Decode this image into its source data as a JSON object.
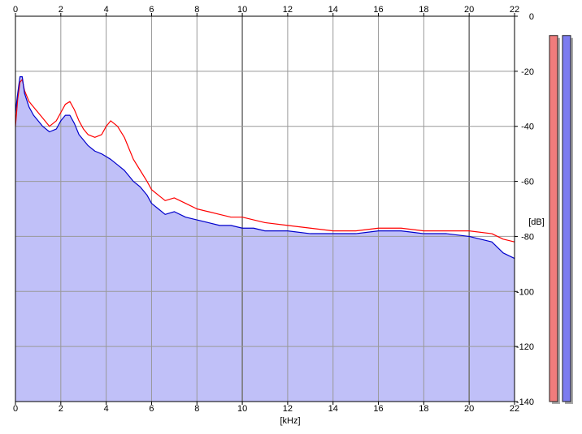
{
  "chart_data": {
    "type": "area",
    "x_unit_label": "[kHz]",
    "y_unit_label": "[dB]",
    "xlim": [
      0,
      22
    ],
    "ylim": [
      -140,
      0
    ],
    "x_ticks": [
      "0",
      "2",
      "4",
      "6",
      "8",
      "10",
      "12",
      "14",
      "16",
      "18",
      "20",
      "22"
    ],
    "y_ticks": [
      "0",
      "-20",
      "-40",
      "-60",
      "-80",
      "-100",
      "-120",
      "-140"
    ],
    "grid": true,
    "series": [
      {
        "color": "#ff0000",
        "x": [
          0,
          0.1,
          0.2,
          0.3,
          0.4,
          0.6,
          0.8,
          1.0,
          1.2,
          1.5,
          1.8,
          2.0,
          2.2,
          2.4,
          2.6,
          2.8,
          3.0,
          3.2,
          3.5,
          3.8,
          4.0,
          4.2,
          4.5,
          4.8,
          5.0,
          5.2,
          5.5,
          5.8,
          6.0,
          6.3,
          6.6,
          7.0,
          7.5,
          8.0,
          8.5,
          9.0,
          9.5,
          10.0,
          10.5,
          11.0,
          12.0,
          13.0,
          14.0,
          15.0,
          16.0,
          17.0,
          18.0,
          19.0,
          20.0,
          21.0,
          21.5,
          22.0
        ],
        "values": [
          -40,
          -30,
          -24,
          -23,
          -27,
          -31,
          -33,
          -35,
          -37,
          -40,
          -38,
          -35,
          -32,
          -31,
          -34,
          -38,
          -41,
          -43,
          -44,
          -43,
          -40,
          -38,
          -40,
          -44,
          -48,
          -52,
          -56,
          -60,
          -63,
          -65,
          -67,
          -66,
          -68,
          -70,
          -71,
          -72,
          -73,
          -73,
          -74,
          -75,
          -76,
          -77,
          -78,
          -78,
          -77,
          -77,
          -78,
          -78,
          -78,
          -79,
          -81,
          -82
        ]
      },
      {
        "color": "#0000cc",
        "x": [
          0,
          0.1,
          0.2,
          0.3,
          0.4,
          0.6,
          0.8,
          1.0,
          1.2,
          1.5,
          1.8,
          2.0,
          2.2,
          2.4,
          2.6,
          2.8,
          3.0,
          3.2,
          3.5,
          3.8,
          4.0,
          4.2,
          4.5,
          4.8,
          5.0,
          5.2,
          5.5,
          5.8,
          6.0,
          6.3,
          6.6,
          7.0,
          7.5,
          8.0,
          8.5,
          9.0,
          9.5,
          10.0,
          10.5,
          11.0,
          12.0,
          13.0,
          14.0,
          15.0,
          16.0,
          17.0,
          18.0,
          19.0,
          20.0,
          21.0,
          21.5,
          22.0
        ],
        "values": [
          -35,
          -28,
          -22,
          -22,
          -28,
          -33,
          -36,
          -38,
          -40,
          -42,
          -41,
          -38,
          -36,
          -36,
          -39,
          -43,
          -45,
          -47,
          -49,
          -50,
          -51,
          -52,
          -54,
          -56,
          -58,
          -60,
          -62,
          -65,
          -68,
          -70,
          -72,
          -71,
          -73,
          -74,
          -75,
          -76,
          -76,
          -77,
          -77,
          -78,
          -78,
          -79,
          -79,
          -79,
          -78,
          -78,
          -79,
          -79,
          -80,
          -82,
          -86,
          -88
        ]
      }
    ]
  },
  "level_meters": [
    {
      "color": "#f07c7c",
      "level_db": -7
    },
    {
      "color": "#7c7cf0",
      "level_db": -7
    }
  ],
  "colors": {
    "fill": "#c0c0f8",
    "grid": "#999999",
    "major_grid": "#7a7a7a",
    "axis": "#000000"
  }
}
